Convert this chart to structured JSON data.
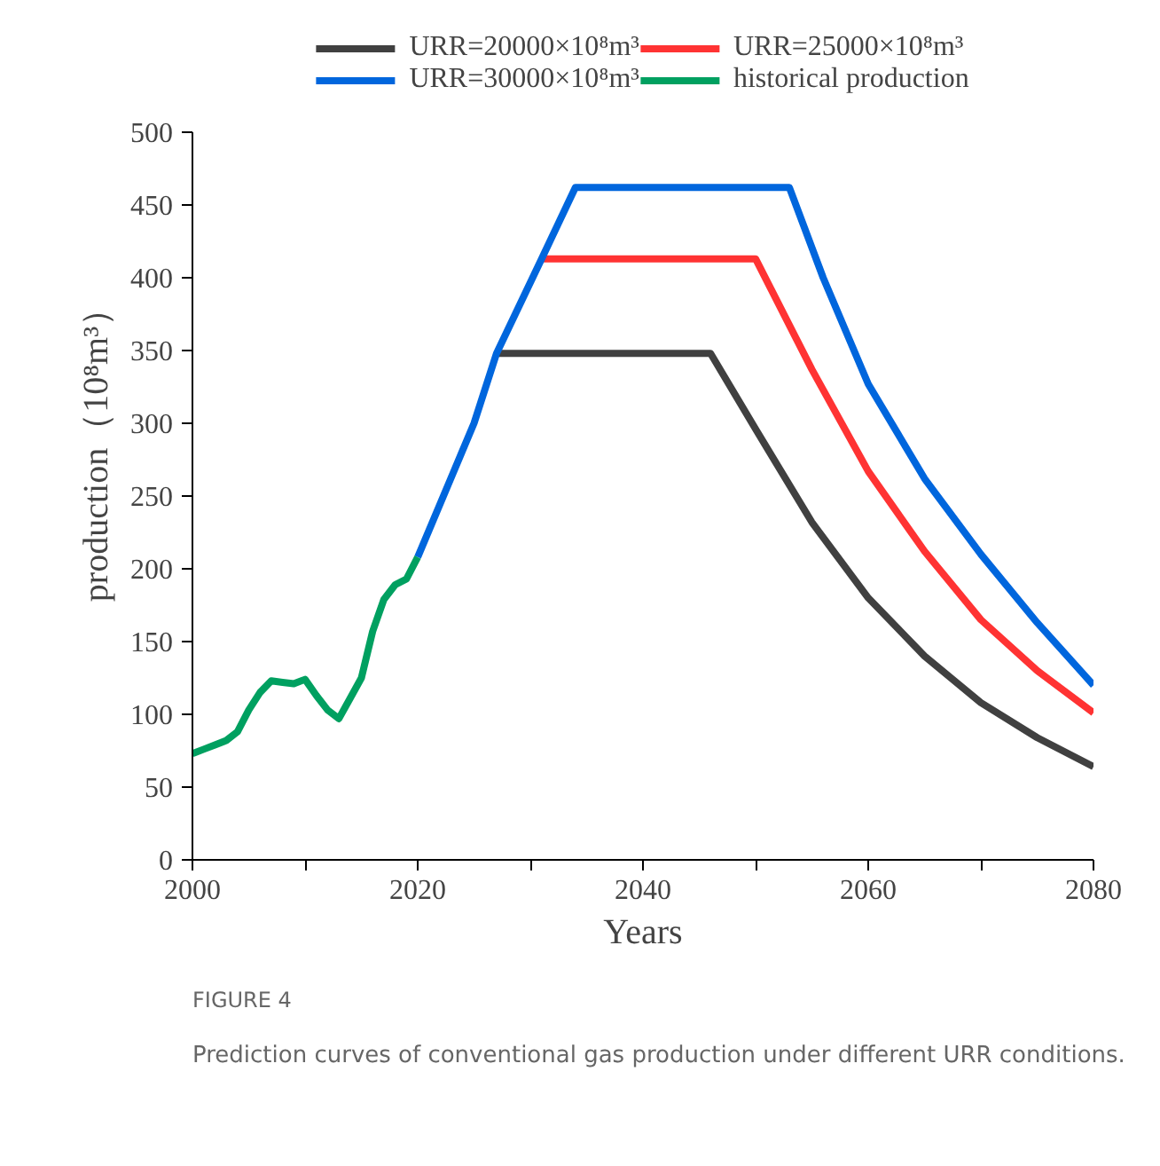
{
  "chart_data": {
    "type": "line",
    "xlabel": "Years",
    "ylabel": "production（10⁸m³）",
    "xlim": [
      2000,
      2080
    ],
    "ylim": [
      0,
      500
    ],
    "xticks": [
      2000,
      {
        "value": 2010,
        "label": null
      },
      2020,
      {
        "value": 2030,
        "label": null
      },
      2040,
      {
        "value": 2050,
        "label": null
      },
      2060,
      {
        "value": 2070,
        "label": null
      },
      2080
    ],
    "yticks": [
      0,
      50,
      100,
      150,
      200,
      250,
      300,
      350,
      400,
      450,
      500
    ],
    "grid": false,
    "legend": "top",
    "line_style": "solid",
    "marker": "none",
    "series": [
      {
        "name": "URR=20000×10⁸m³",
        "color": "#404040",
        "x": [
          2027,
          2046,
          2050,
          2055,
          2060,
          2065,
          2070,
          2075,
          2080
        ],
        "values": [
          348,
          348,
          296,
          232,
          180,
          140,
          108,
          84,
          64
        ]
      },
      {
        "name": "URR=25000×10⁸m³",
        "color": "#ff3333",
        "x": [
          2031,
          2050,
          2055,
          2060,
          2065,
          2070,
          2075,
          2080
        ],
        "values": [
          413,
          413,
          337,
          267,
          212,
          165,
          130,
          101
        ]
      },
      {
        "name": "URR=30000×10⁸m³",
        "color": "#0066dd",
        "x": [
          2020,
          2025,
          2027,
          2031,
          2034,
          2053,
          2056,
          2060,
          2065,
          2070,
          2075,
          2080
        ],
        "values": [
          208,
          300,
          348,
          413,
          462,
          462,
          400,
          327,
          262,
          210,
          163,
          120
        ]
      },
      {
        "name": "historical production",
        "color": "#00a060",
        "x": [
          2000,
          2001,
          2002,
          2003,
          2004,
          2005,
          2006,
          2007,
          2008,
          2009,
          2010,
          2011,
          2012,
          2013,
          2014,
          2015,
          2016,
          2017,
          2018,
          2019,
          2020
        ],
        "values": [
          73,
          76,
          79,
          82,
          88,
          103,
          115,
          123,
          122,
          121,
          124,
          113,
          103,
          97,
          111,
          125,
          157,
          179,
          189,
          193,
          208
        ]
      }
    ],
    "annotations": [
      "FIGURE 4",
      "Prediction curves of conventional gas production under different URR conditions."
    ]
  }
}
